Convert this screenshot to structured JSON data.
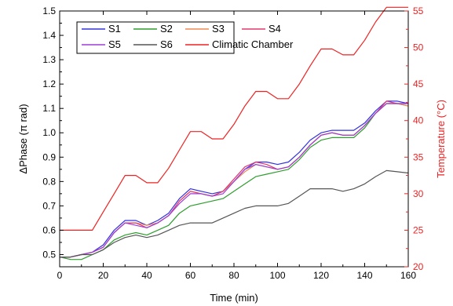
{
  "chart_data": {
    "type": "line",
    "xlabel": "Time (min)",
    "ylabel": "ΔPhase (π rad)",
    "y2label": "Temperature (°C)",
    "xlim": [
      0,
      160
    ],
    "ylim": [
      0.45,
      1.5
    ],
    "y2lim": [
      20,
      55
    ],
    "xticks": [
      "0",
      "20",
      "40",
      "60",
      "80",
      "100",
      "120",
      "140",
      "160"
    ],
    "yticks": [
      "0.5",
      "0.6",
      "0.7",
      "0.8",
      "0.9",
      "1.0",
      "1.1",
      "1.2",
      "1.3",
      "1.4",
      "1.5"
    ],
    "y2ticks": [
      "20",
      "25",
      "30",
      "35",
      "40",
      "45",
      "50",
      "55"
    ],
    "grid": false,
    "legend_position": "top-left",
    "series": [
      {
        "name": "S1",
        "axis": "left",
        "color": "#3333dd",
        "x": [
          0,
          5,
          10,
          15,
          20,
          25,
          30,
          35,
          40,
          45,
          50,
          55,
          60,
          65,
          70,
          75,
          80,
          85,
          90,
          95,
          100,
          105,
          110,
          115,
          120,
          125,
          130,
          135,
          140,
          145,
          150,
          155,
          160
        ],
        "y": [
          0.49,
          0.49,
          0.5,
          0.51,
          0.54,
          0.6,
          0.64,
          0.64,
          0.62,
          0.64,
          0.67,
          0.73,
          0.77,
          0.76,
          0.75,
          0.76,
          0.8,
          0.85,
          0.88,
          0.88,
          0.87,
          0.88,
          0.92,
          0.97,
          1.0,
          1.01,
          1.01,
          1.01,
          1.04,
          1.09,
          1.13,
          1.13,
          1.12
        ]
      },
      {
        "name": "S2",
        "axis": "left",
        "color": "#2e9e2e",
        "x": [
          0,
          5,
          10,
          15,
          20,
          25,
          30,
          35,
          40,
          45,
          50,
          55,
          60,
          65,
          70,
          75,
          80,
          85,
          90,
          95,
          100,
          105,
          110,
          115,
          120,
          125,
          130,
          135,
          140,
          145,
          150,
          155,
          160
        ],
        "y": [
          0.49,
          0.48,
          0.48,
          0.5,
          0.52,
          0.56,
          0.58,
          0.59,
          0.58,
          0.6,
          0.62,
          0.67,
          0.7,
          0.71,
          0.72,
          0.73,
          0.76,
          0.79,
          0.82,
          0.83,
          0.84,
          0.85,
          0.89,
          0.94,
          0.97,
          0.98,
          0.98,
          0.98,
          1.02,
          1.08,
          1.12,
          1.12,
          1.11
        ]
      },
      {
        "name": "S3",
        "axis": "left",
        "color": "#f08a50",
        "x": [
          0,
          5,
          10,
          15,
          20,
          25,
          30,
          35,
          40,
          45,
          50,
          55,
          60,
          65,
          70,
          75,
          80,
          85,
          90,
          95,
          100,
          105,
          110,
          115,
          120,
          125,
          130,
          135,
          140,
          145,
          150,
          155,
          160
        ],
        "y": [
          0.49,
          0.49,
          0.5,
          0.51,
          0.53,
          0.59,
          0.63,
          0.63,
          0.62,
          0.63,
          0.66,
          0.72,
          0.76,
          0.75,
          0.74,
          0.76,
          0.8,
          0.84,
          0.87,
          0.86,
          0.85,
          0.86,
          0.9,
          0.95,
          0.99,
          1.0,
          0.99,
          0.99,
          1.03,
          1.08,
          1.12,
          1.12,
          1.11
        ]
      },
      {
        "name": "S4",
        "axis": "left",
        "color": "#e23a6a",
        "x": [
          0,
          5,
          10,
          15,
          20,
          25,
          30,
          35,
          40,
          45,
          50,
          55,
          60,
          65,
          70,
          75,
          80,
          85,
          90,
          95,
          100,
          105,
          110,
          115,
          120,
          125,
          130,
          135,
          140,
          145,
          150,
          155,
          160
        ],
        "y": [
          0.49,
          0.49,
          0.5,
          0.51,
          0.53,
          0.59,
          0.63,
          0.63,
          0.61,
          0.63,
          0.66,
          0.72,
          0.76,
          0.75,
          0.74,
          0.76,
          0.81,
          0.86,
          0.88,
          0.87,
          0.85,
          0.86,
          0.9,
          0.95,
          0.99,
          1.0,
          0.99,
          0.99,
          1.03,
          1.08,
          1.13,
          1.12,
          1.12
        ]
      },
      {
        "name": "S5",
        "axis": "left",
        "color": "#9b3fd6",
        "x": [
          0,
          5,
          10,
          15,
          20,
          25,
          30,
          35,
          40,
          45,
          50,
          55,
          60,
          65,
          70,
          75,
          80,
          85,
          90,
          95,
          100,
          105,
          110,
          115,
          120,
          125,
          130,
          135,
          140,
          145,
          150,
          155,
          160
        ],
        "y": [
          0.49,
          0.49,
          0.5,
          0.51,
          0.53,
          0.59,
          0.63,
          0.62,
          0.61,
          0.63,
          0.66,
          0.71,
          0.75,
          0.75,
          0.74,
          0.75,
          0.8,
          0.85,
          0.87,
          0.86,
          0.85,
          0.86,
          0.9,
          0.95,
          0.99,
          1.0,
          0.99,
          0.99,
          1.03,
          1.08,
          1.12,
          1.12,
          1.12
        ]
      },
      {
        "name": "S6",
        "axis": "left",
        "color": "#555555",
        "x": [
          0,
          5,
          10,
          15,
          20,
          25,
          30,
          35,
          40,
          45,
          50,
          55,
          60,
          65,
          70,
          75,
          80,
          85,
          90,
          95,
          100,
          105,
          110,
          115,
          120,
          125,
          130,
          135,
          140,
          145,
          150,
          155,
          160
        ],
        "y": [
          0.49,
          0.49,
          0.5,
          0.5,
          0.52,
          0.55,
          0.57,
          0.58,
          0.57,
          0.58,
          0.6,
          0.62,
          0.63,
          0.63,
          0.63,
          0.65,
          0.67,
          0.69,
          0.7,
          0.7,
          0.7,
          0.71,
          0.74,
          0.77,
          0.77,
          0.77,
          0.76,
          0.77,
          0.79,
          0.82,
          0.845,
          0.84,
          0.835
        ]
      },
      {
        "name": "Climatic Chamber",
        "axis": "right",
        "color": "#ee2222",
        "x": [
          0,
          5,
          10,
          15,
          20,
          25,
          30,
          35,
          40,
          45,
          50,
          55,
          60,
          65,
          70,
          75,
          80,
          85,
          90,
          95,
          100,
          105,
          110,
          115,
          120,
          125,
          130,
          135,
          140,
          145,
          150,
          155,
          160
        ],
        "y": [
          25,
          25,
          25,
          25,
          27.5,
          30,
          32.5,
          32.5,
          31.5,
          31.5,
          33.5,
          36,
          38.5,
          38.5,
          37.5,
          37.5,
          39.5,
          42,
          44,
          44,
          43,
          43,
          45,
          47.5,
          49.8,
          49.8,
          49,
          49,
          51,
          53.5,
          55.5,
          55.5,
          55.5
        ]
      }
    ]
  }
}
